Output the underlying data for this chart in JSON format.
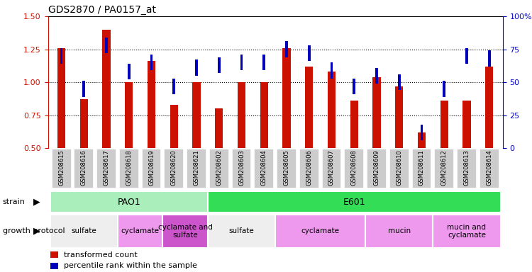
{
  "title": "GDS2870 / PA0157_at",
  "samples": [
    "GSM208615",
    "GSM208616",
    "GSM208617",
    "GSM208618",
    "GSM208619",
    "GSM208620",
    "GSM208621",
    "GSM208602",
    "GSM208603",
    "GSM208604",
    "GSM208605",
    "GSM208606",
    "GSM208607",
    "GSM208608",
    "GSM208609",
    "GSM208610",
    "GSM208611",
    "GSM208612",
    "GSM208613",
    "GSM208614"
  ],
  "red_values": [
    1.26,
    0.87,
    1.4,
    1.0,
    1.16,
    0.83,
    1.0,
    0.8,
    1.0,
    1.0,
    1.26,
    1.12,
    1.08,
    0.86,
    1.04,
    0.97,
    0.62,
    0.86,
    0.86,
    1.12
  ],
  "blue_values_pct": [
    70,
    45,
    78,
    58,
    65,
    47,
    61,
    63,
    65,
    65,
    75,
    72,
    59,
    47,
    55,
    50,
    12,
    45,
    70,
    68
  ],
  "ylim_left": [
    0.5,
    1.5
  ],
  "ylim_right": [
    0,
    100
  ],
  "yticks_left": [
    0.5,
    0.75,
    1.0,
    1.25,
    1.5
  ],
  "yticks_right": [
    0,
    25,
    50,
    75,
    100
  ],
  "ytick_labels_right": [
    "0",
    "25",
    "50",
    "75",
    "100%"
  ],
  "hlines": [
    0.75,
    1.0,
    1.25
  ],
  "red_color": "#cc1100",
  "blue_color": "#0000bb",
  "bar_width": 0.35,
  "blue_marker_size": 0.12,
  "strain_row": [
    {
      "label": "PAO1",
      "start": 0,
      "end": 7,
      "color": "#aaeebb"
    },
    {
      "label": "E601",
      "start": 7,
      "end": 20,
      "color": "#33dd55"
    }
  ],
  "protocol_row": [
    {
      "label": "sulfate",
      "start": 0,
      "end": 3,
      "color": "#eeeeee"
    },
    {
      "label": "cyclamate",
      "start": 3,
      "end": 5,
      "color": "#ee99ee"
    },
    {
      "label": "cyclamate and\nsulfate",
      "start": 5,
      "end": 7,
      "color": "#cc55cc"
    },
    {
      "label": "sulfate",
      "start": 7,
      "end": 10,
      "color": "#eeeeee"
    },
    {
      "label": "cyclamate",
      "start": 10,
      "end": 14,
      "color": "#ee99ee"
    },
    {
      "label": "mucin",
      "start": 14,
      "end": 17,
      "color": "#ee99ee"
    },
    {
      "label": "mucin and\ncyclamate",
      "start": 17,
      "end": 20,
      "color": "#ee99ee"
    }
  ],
  "legend_items": [
    {
      "label": "transformed count",
      "color": "#cc1100"
    },
    {
      "label": "percentile rank within the sample",
      "color": "#0000bb"
    }
  ],
  "bg_color": "#ffffff",
  "tick_color_left": "#cc1100",
  "tick_color_right": "#0000bb",
  "xticklabel_bg": "#cccccc"
}
